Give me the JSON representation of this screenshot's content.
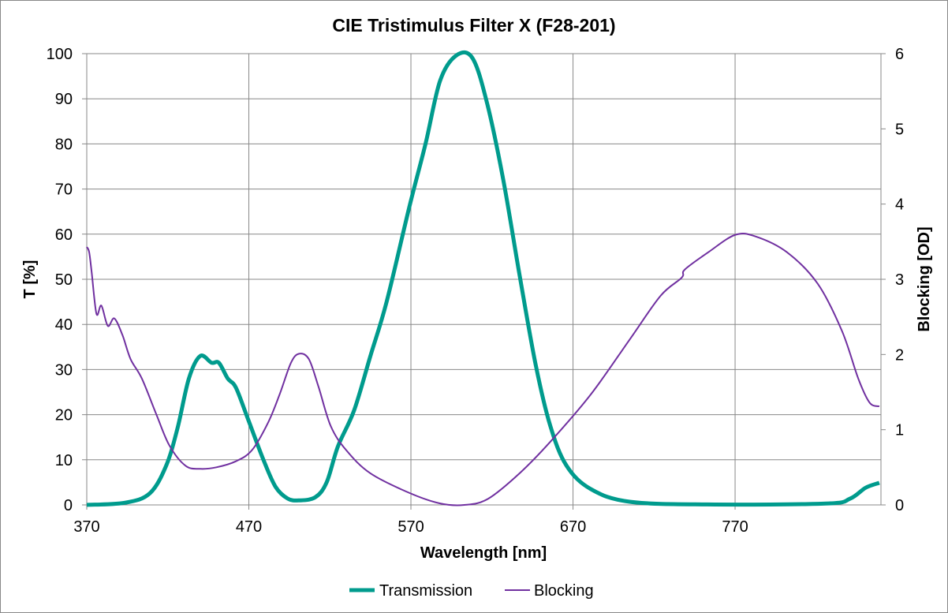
{
  "chart_data": {
    "type": "line",
    "title": "CIE Tristimulus Filter X (F28-201)",
    "xlabel": "Wavelength [nm]",
    "ylabel": "T [%]",
    "y2label": "Blocking [OD]",
    "xlim": [
      370,
      860
    ],
    "ylim": [
      0,
      100
    ],
    "y2lim": [
      0,
      6
    ],
    "xticks": [
      "370",
      "470",
      "570",
      "670",
      "770"
    ],
    "yticks": [
      "0",
      "10",
      "20",
      "30",
      "40",
      "50",
      "60",
      "70",
      "80",
      "90",
      "100"
    ],
    "y2ticks": [
      "0",
      "1",
      "2",
      "3",
      "4",
      "5",
      "6"
    ],
    "grid": true,
    "legend": "bottom",
    "series": [
      {
        "name": "Transmission",
        "axis": "left",
        "color": "#009B8D",
        "x": [
          370,
          394,
          409,
          419,
          426,
          433,
          440,
          447,
          451.5,
          457,
          462,
          469.5,
          479,
          486.5,
          494,
          501,
          511,
          518,
          525,
          535,
          545,
          555,
          569,
          579,
          588,
          598,
          608,
          617,
          627,
          637,
          647,
          656,
          666,
          681,
          705,
          753,
          826,
          841,
          850.5,
          859
        ],
        "y": [
          0,
          0.5,
          2.6,
          8.7,
          17,
          28,
          33,
          31.5,
          31.5,
          28,
          26,
          19,
          10,
          4,
          1.4,
          1,
          1.7,
          5,
          13,
          21,
          33,
          45,
          66,
          80,
          94,
          99.6,
          99,
          89,
          72,
          51,
          31,
          17.5,
          8.7,
          3.5,
          0.7,
          0.1,
          0.3,
          1.4,
          3.8,
          4.9
        ]
      },
      {
        "name": "Blocking",
        "axis": "right",
        "color": "#7030A0",
        "x": [
          370,
          371.5,
          373,
          376,
          379,
          383,
          387,
          392,
          397,
          404,
          413,
          421,
          431,
          440,
          450,
          462,
          472,
          482,
          489,
          496,
          501,
          507,
          513,
          520.5,
          530,
          545,
          569,
          588,
          603,
          617.5,
          637,
          656,
          681,
          705,
          724,
          737,
          739,
          753.5,
          770,
          782.6,
          802,
          821,
          836,
          846,
          853,
          859
        ],
        "y": [
          3.43,
          3.36,
          3.1,
          2.54,
          2.65,
          2.38,
          2.48,
          2.26,
          1.94,
          1.68,
          1.2,
          0.79,
          0.52,
          0.48,
          0.5,
          0.58,
          0.73,
          1.1,
          1.47,
          1.89,
          2.01,
          1.94,
          1.57,
          1.05,
          0.73,
          0.42,
          0.16,
          0.02,
          0,
          0.08,
          0.42,
          0.84,
          1.47,
          2.2,
          2.78,
          3.02,
          3.13,
          3.36,
          3.59,
          3.57,
          3.36,
          2.94,
          2.31,
          1.68,
          1.36,
          1.31
        ]
      }
    ]
  }
}
